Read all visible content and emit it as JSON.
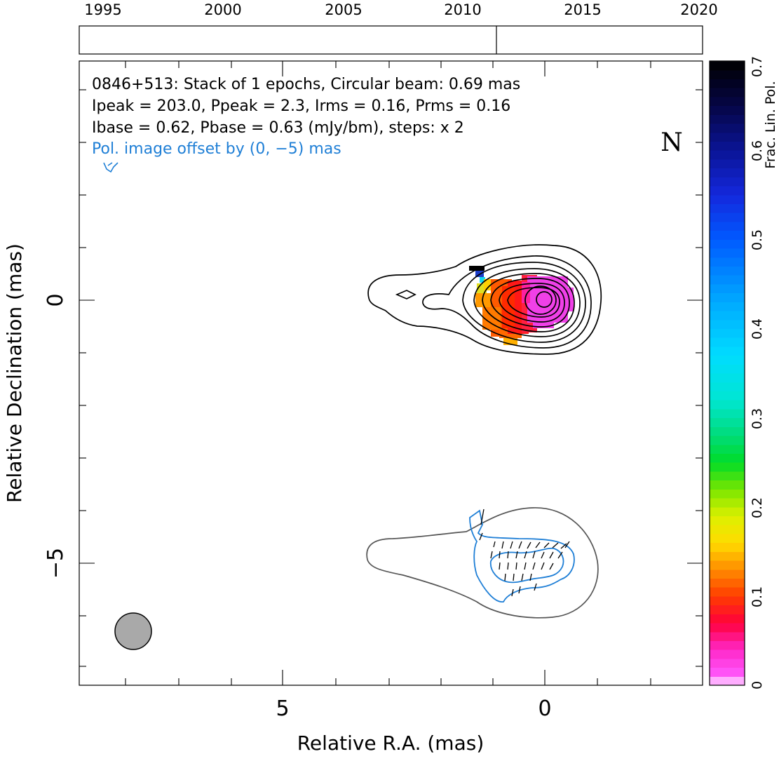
{
  "timeline": {
    "years": [
      "1995",
      "2000",
      "2005",
      "2010",
      "2015",
      "2020"
    ],
    "epoch_year": 2011.6
  },
  "header": {
    "line1": "0846+513: Stack of 1 epochs, Circular beam: 0.69 mas",
    "line2": "Ipeak = 203.0, Ppeak = 2.3, Irms = 0.16, Prms = 0.16",
    "line3": "Ibase = 0.62, Pbase = 0.63 (mJy/bm), steps: x 2",
    "offset_note": "Pol. image offset by (0, −5) mas",
    "north_label": "N"
  },
  "colorbar": {
    "label": "Frac. Lin. Pol.",
    "ticks": [
      "0",
      "0.1",
      "0.2",
      "0.3",
      "0.4",
      "0.5",
      "0.6",
      "0.7"
    ]
  },
  "colors": {
    "stokes_i_contour": "#000000",
    "pol_intensity_contour": "#1f7fd6",
    "offset_i_contour": "#555555",
    "beam_fill": "#a9a9a9",
    "offset_note_color": "#1f7fd6"
  },
  "chart_data": {
    "type": "heatmap",
    "title": "0846+513: Stack of 1 epochs, Circular beam: 0.69 mas",
    "xlabel": "Relative R.A. (mas)",
    "ylabel": "Relative Declination (mas)",
    "x_ticks": [
      "5",
      "0"
    ],
    "y_ticks": [
      "0",
      "−5"
    ],
    "x_range": [
      8.9,
      -3.0
    ],
    "y_range": [
      -7.3,
      4.5
    ],
    "beam_fwhm_mas": 0.69,
    "colorbar_range": [
      0,
      0.7
    ],
    "pol_offset_mas": [
      0,
      -5
    ]
  }
}
